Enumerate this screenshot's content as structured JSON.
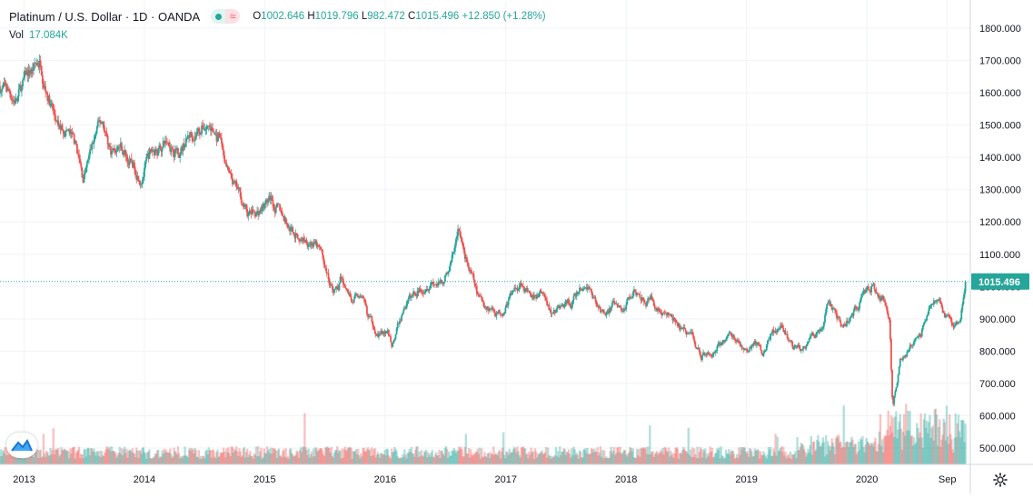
{
  "legend": {
    "title": "Platinum / U.S. Dollar · 1D · OANDA",
    "open_label": "O",
    "open": "1002.646",
    "high_label": "H",
    "high": "1019.796",
    "low_label": "L",
    "low": "982.472",
    "close_label": "C",
    "close": "1015.496",
    "change": "+12.850 (+1.28%)",
    "vol_label": "Vol",
    "vol": "17.084K"
  },
  "icons": {
    "status": "green-dot-icon",
    "compare": "wave-icon",
    "logo": "tradingview-logo-icon",
    "settings": "gear-icon"
  },
  "colors": {
    "up": "#26a69a",
    "down": "#ef5350",
    "last_price_line": "#26a69a",
    "grid": "#f0f3fa",
    "axis_text": "#131722"
  },
  "chart_data": {
    "type": "candlestick",
    "title": "Platinum / U.S. Dollar · 1D · OANDA",
    "y_ticks": [
      "1800.000",
      "1700.000",
      "1600.000",
      "1500.000",
      "1400.000",
      "1300.000",
      "1200.000",
      "1100.000",
      "1000.000",
      "900.000",
      "800.000",
      "700.000",
      "600.000",
      "500.000"
    ],
    "ylim": [
      470,
      1830
    ],
    "x_ticks": [
      "2013",
      "2014",
      "2015",
      "2016",
      "2017",
      "2018",
      "2019",
      "2020",
      "Sep"
    ],
    "x_tick_dates": [
      "2013-01-01",
      "2014-01-01",
      "2015-01-01",
      "2016-01-01",
      "2017-01-01",
      "2018-01-01",
      "2019-01-01",
      "2020-01-01",
      "2020-09-01"
    ],
    "x_range": [
      "2012-10-20",
      "2020-10-27"
    ],
    "last_price": "1015.496",
    "grid": true,
    "price_path": {
      "dates": [
        "2012-10-20",
        "2012-11-15",
        "2012-12-10",
        "2013-01-10",
        "2013-02-20",
        "2013-03-20",
        "2013-04-15",
        "2013-05-10",
        "2013-06-10",
        "2013-06-28",
        "2013-08-10",
        "2013-08-28",
        "2013-09-20",
        "2013-10-20",
        "2013-11-20",
        "2013-12-20",
        "2014-01-20",
        "2014-03-10",
        "2014-04-20",
        "2014-05-20",
        "2014-06-30",
        "2014-07-15",
        "2014-08-20",
        "2014-09-20",
        "2014-10-20",
        "2014-11-10",
        "2014-12-10",
        "2015-01-20",
        "2015-02-10",
        "2015-03-20",
        "2015-04-20",
        "2015-05-20",
        "2015-06-20",
        "2015-07-20",
        "2015-08-10",
        "2015-08-20",
        "2015-09-20",
        "2015-10-15",
        "2015-11-10",
        "2015-12-10",
        "2016-01-10",
        "2016-01-21",
        "2016-03-01",
        "2016-04-20",
        "2016-05-20",
        "2016-06-20",
        "2016-07-20",
        "2016-08-10",
        "2016-09-10",
        "2016-10-10",
        "2016-11-10",
        "2016-12-15",
        "2017-01-20",
        "2017-02-20",
        "2017-03-20",
        "2017-04-20",
        "2017-05-20",
        "2017-06-20",
        "2017-07-20",
        "2017-08-20",
        "2017-09-08",
        "2017-10-20",
        "2017-11-20",
        "2017-12-20",
        "2018-01-25",
        "2018-02-20",
        "2018-03-20",
        "2018-04-20",
        "2018-05-20",
        "2018-06-20",
        "2018-07-20",
        "2018-08-16",
        "2018-09-20",
        "2018-10-20",
        "2018-11-20",
        "2018-12-20",
        "2019-01-20",
        "2019-02-20",
        "2019-03-20",
        "2019-04-20",
        "2019-05-20",
        "2019-06-10",
        "2019-07-20",
        "2019-08-20",
        "2019-09-05",
        "2019-10-20",
        "2019-11-20",
        "2019-12-20",
        "2020-01-20",
        "2020-02-20",
        "2020-03-10",
        "2020-03-19",
        "2020-04-10",
        "2020-05-10",
        "2020-06-10",
        "2020-07-10",
        "2020-08-10",
        "2020-08-20",
        "2020-09-20",
        "2020-10-10",
        "2020-10-27"
      ],
      "close": [
        1620,
        1600,
        1580,
        1650,
        1700,
        1580,
        1480,
        1490,
        1420,
        1330,
        1480,
        1510,
        1420,
        1440,
        1380,
        1350,
        1410,
        1450,
        1430,
        1470,
        1500,
        1500,
        1440,
        1320,
        1270,
        1220,
        1230,
        1270,
        1240,
        1180,
        1150,
        1150,
        1100,
        1000,
        990,
        1020,
        960,
        980,
        900,
        860,
        850,
        820,
        940,
        1000,
        1030,
        1000,
        1080,
        1170,
        1060,
        960,
        940,
        920,
        980,
        1020,
        950,
        980,
        920,
        940,
        950,
        990,
        1000,
        920,
        940,
        920,
        1000,
        980,
        950,
        920,
        900,
        860,
        850,
        790,
        800,
        830,
        850,
        800,
        820,
        800,
        860,
        870,
        810,
        800,
        850,
        860,
        940,
        880,
        920,
        960,
        1000,
        960,
        900,
        640,
        770,
        810,
        850,
        920,
        960,
        920,
        870,
        870,
        1015
      ]
    }
  }
}
